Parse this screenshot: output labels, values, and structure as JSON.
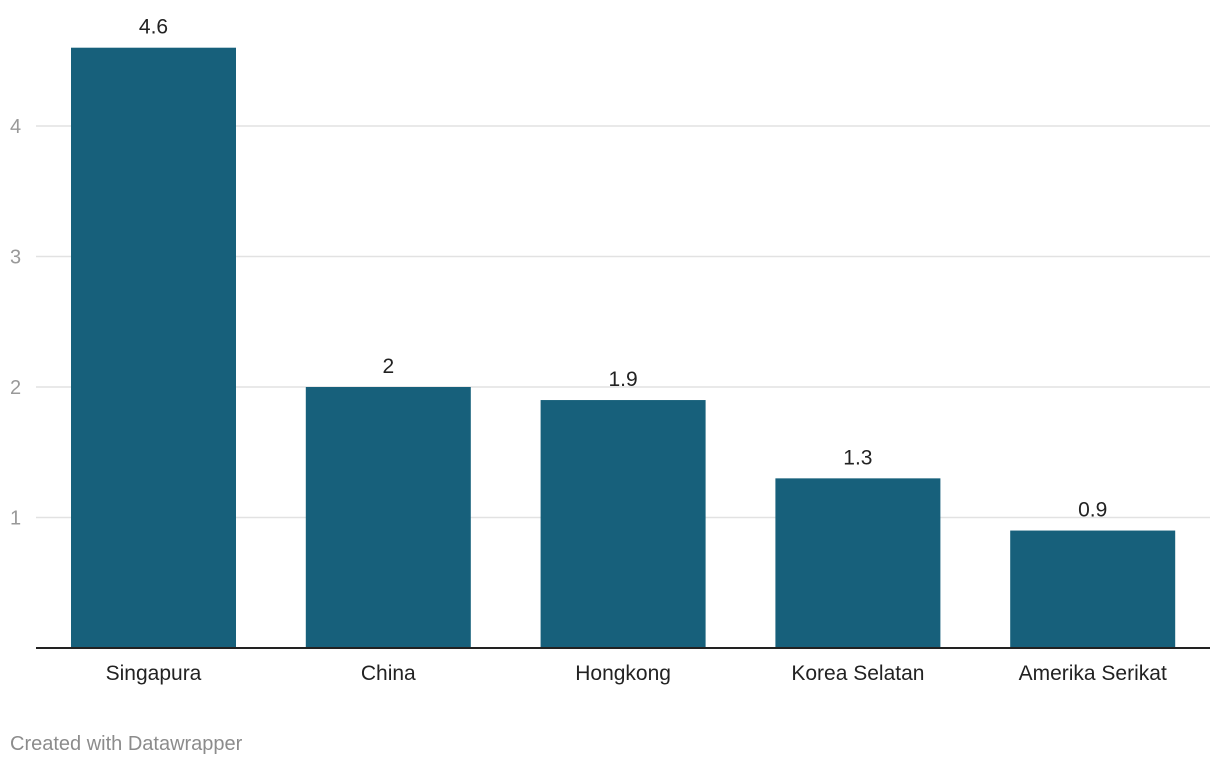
{
  "chart_data": {
    "type": "bar",
    "categories": [
      "Singapura",
      "China",
      "Hongkong",
      "Korea Selatan",
      "Amerika Serikat"
    ],
    "values": [
      4.6,
      2,
      1.9,
      1.3,
      0.9
    ],
    "value_labels": [
      "4.6",
      "2",
      "1.9",
      "1.3",
      "0.9"
    ],
    "y_ticks": [
      1,
      2,
      3,
      4
    ],
    "ylim": [
      0,
      4.6
    ],
    "grid": true,
    "bar_color": "#17607b",
    "gridline_color": "#e2e2e2",
    "axis_color": "#222222",
    "tick_label_color": "#999999"
  },
  "footer": {
    "credit": "Created with Datawrapper"
  }
}
